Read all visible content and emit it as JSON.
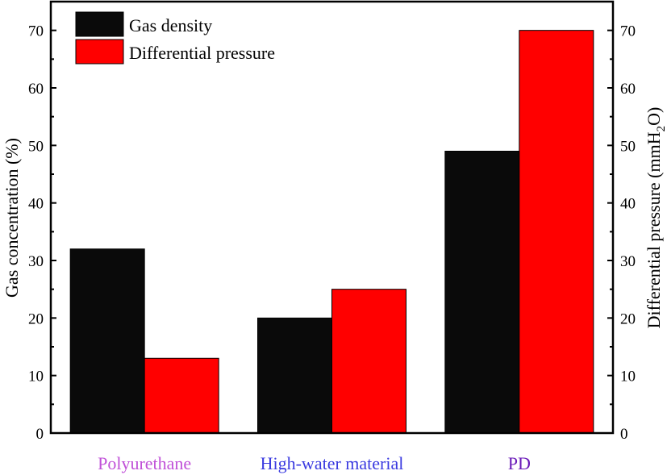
{
  "chart_data": {
    "type": "bar",
    "categories": [
      "Polyurethane",
      "High-water material",
      "PD"
    ],
    "category_colors": [
      "#c050d8",
      "#3a3ae0",
      "#6a1ab8"
    ],
    "series": [
      {
        "name": "Gas density",
        "values": [
          32,
          20,
          49
        ],
        "color": "#0a0a0a",
        "axis": "left"
      },
      {
        "name": "Differential pressure",
        "values": [
          13,
          25,
          70
        ],
        "color": "#ff0000",
        "axis": "right"
      }
    ],
    "ylabel": "Gas concentration (%)",
    "y2label": "Differential pressure (mmH",
    "y2label_sub": "2",
    "y2label_end": "O)",
    "ylim": [
      0,
      75
    ],
    "y2lim": [
      0,
      75
    ],
    "yticks": [
      0,
      10,
      20,
      30,
      40,
      50,
      60,
      70
    ],
    "y2ticks": [
      0,
      10,
      20,
      30,
      40,
      50,
      60,
      70
    ],
    "legend_position": "top-left",
    "grid": false
  }
}
